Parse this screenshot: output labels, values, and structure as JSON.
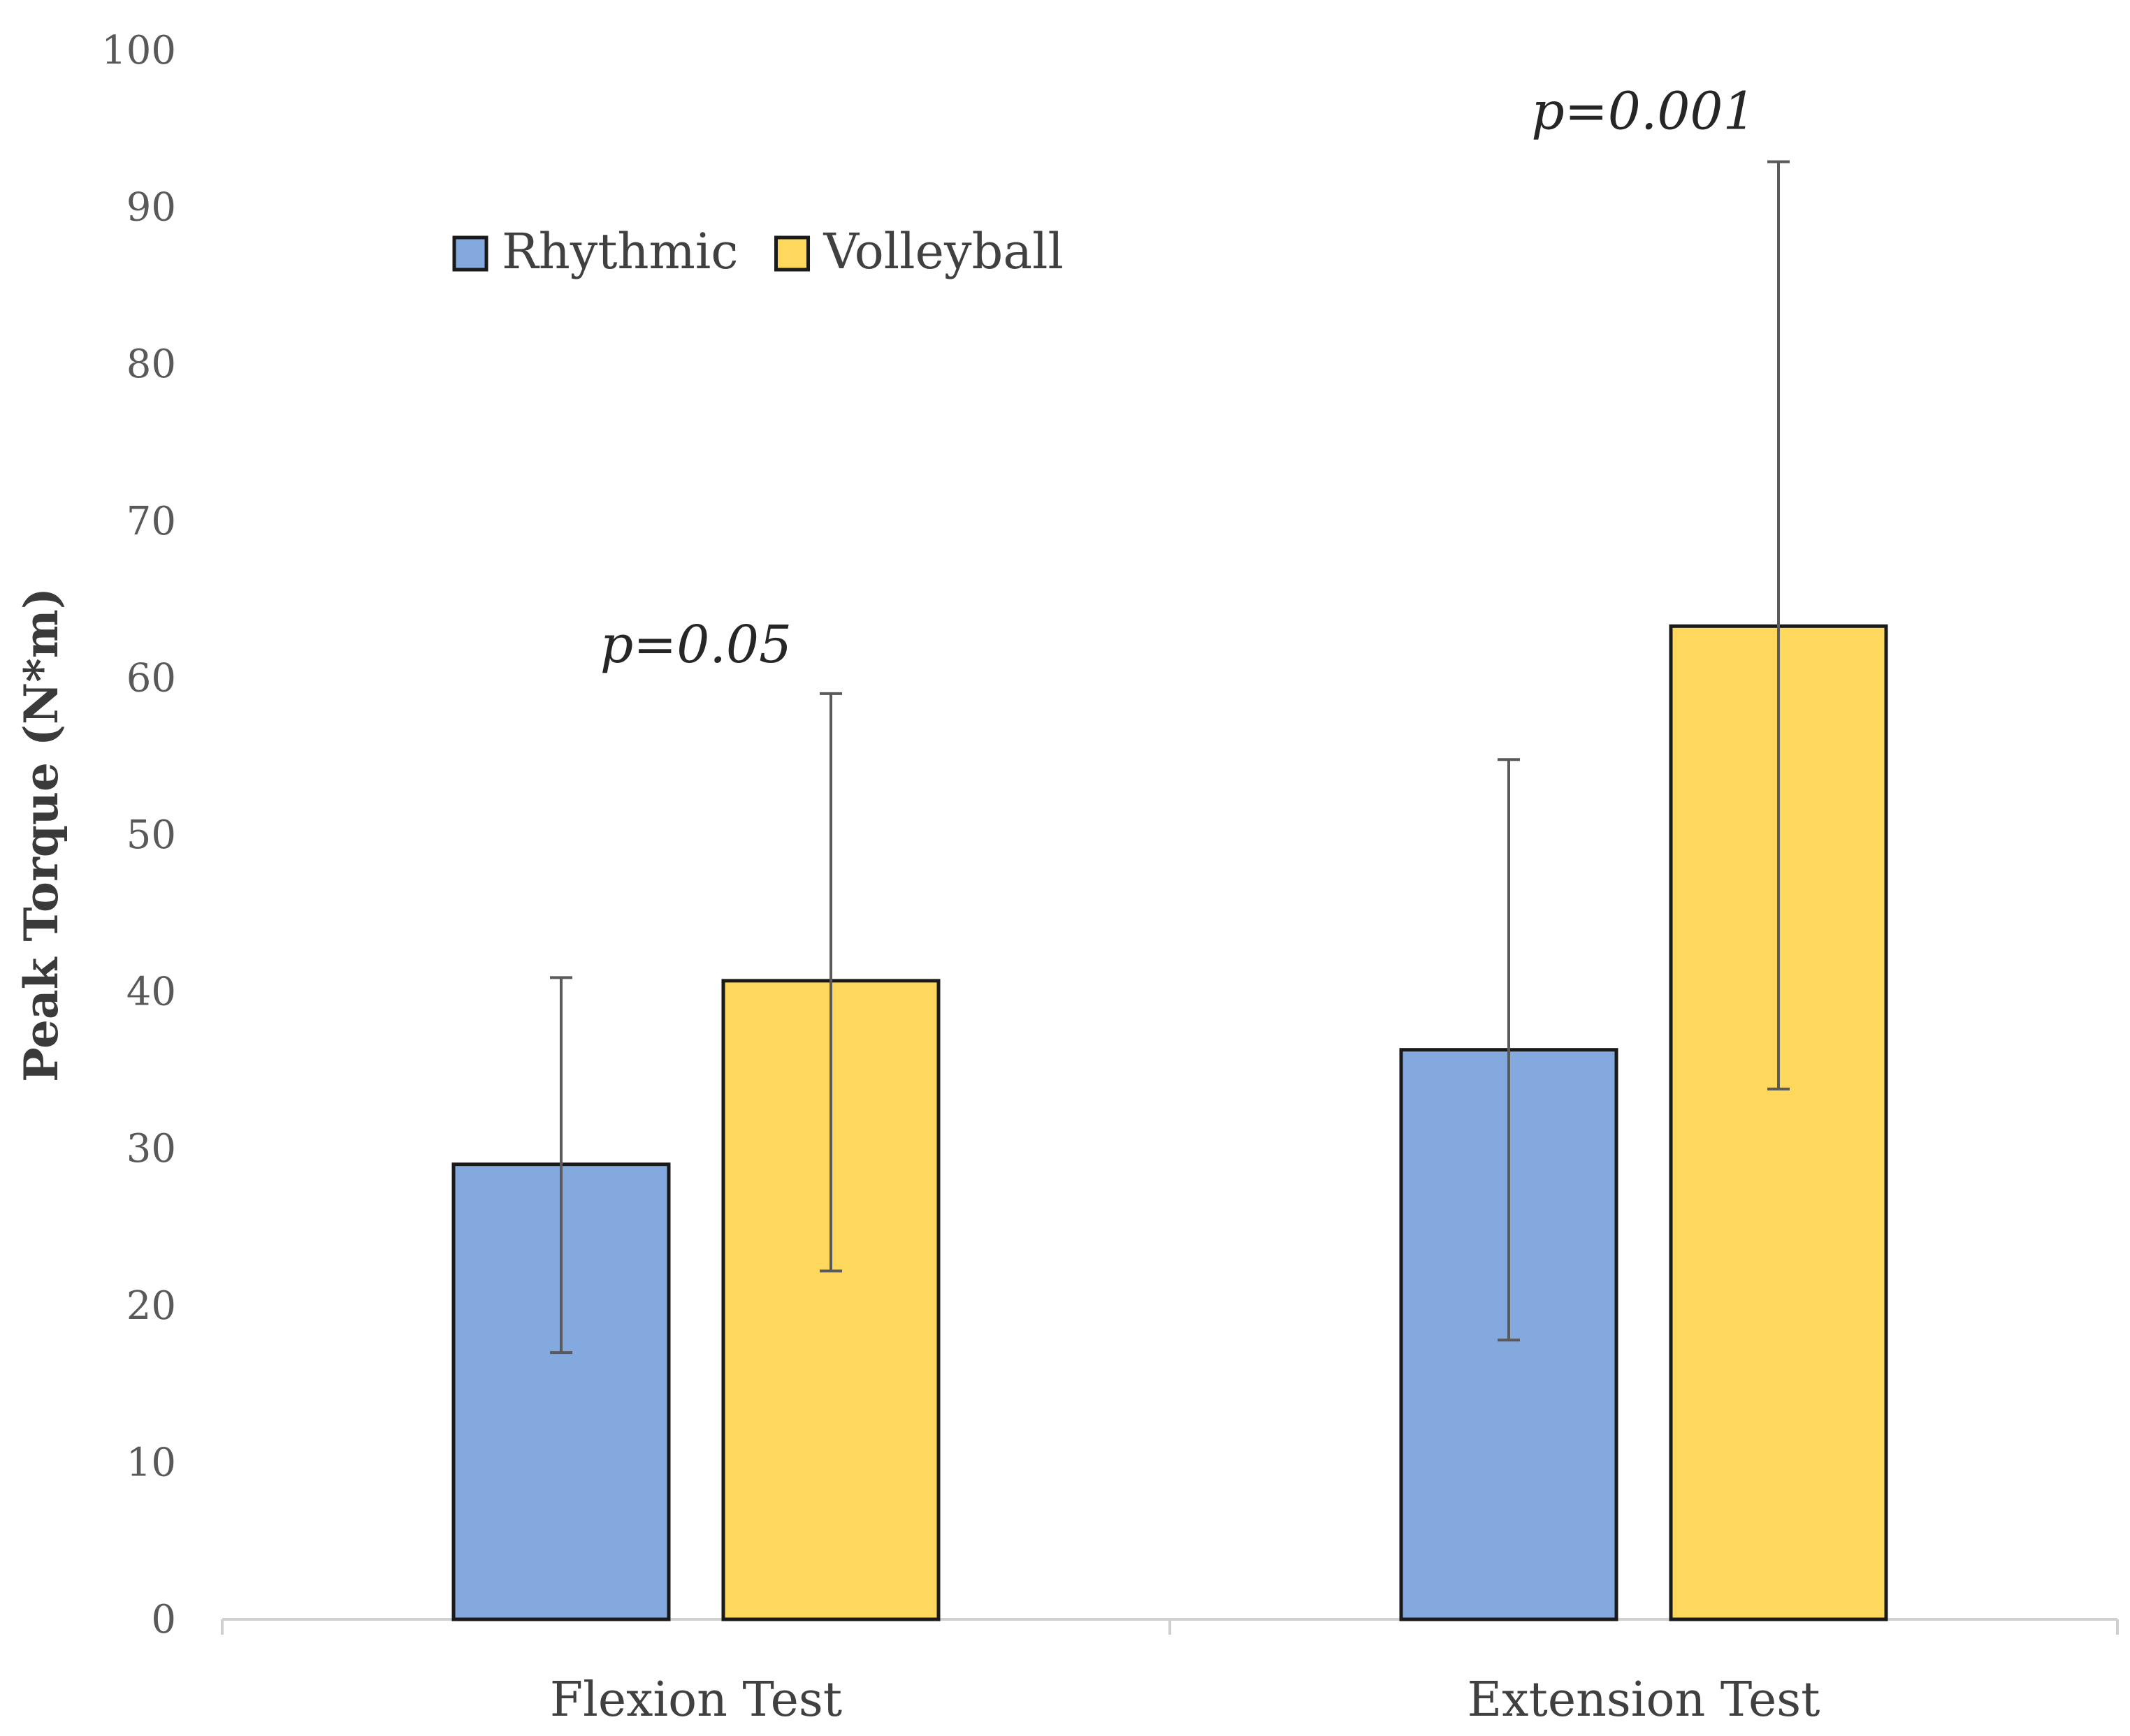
{
  "chart_data": {
    "type": "bar",
    "title": "",
    "xlabel": "",
    "ylabel": "Peak Torque (N*m)",
    "ylim": [
      0,
      100
    ],
    "yticks": [
      "0",
      "10",
      "20",
      "30",
      "40",
      "50",
      "60",
      "70",
      "80",
      "90",
      "100"
    ],
    "grid": false,
    "legend_position": "top-left",
    "categories": [
      "Flexion Test",
      "Extension Test"
    ],
    "series": [
      {
        "name": "Rhythmic",
        "color": "#84A9DE",
        "values": [
          29,
          36.3
        ],
        "error_low": [
          17,
          17.8
        ],
        "error_high": [
          40.9,
          54.8
        ]
      },
      {
        "name": "Volleyball",
        "color": "#FDD85D",
        "values": [
          40.7,
          63.3
        ],
        "error_low": [
          22.2,
          33.8
        ],
        "error_high": [
          59,
          92.9
        ]
      }
    ],
    "annotations": [
      {
        "category": "Flexion Test",
        "text": "p=0.05",
        "y": 61
      },
      {
        "category": "Extension Test",
        "text": "p=0.001",
        "y": 95
      }
    ]
  }
}
